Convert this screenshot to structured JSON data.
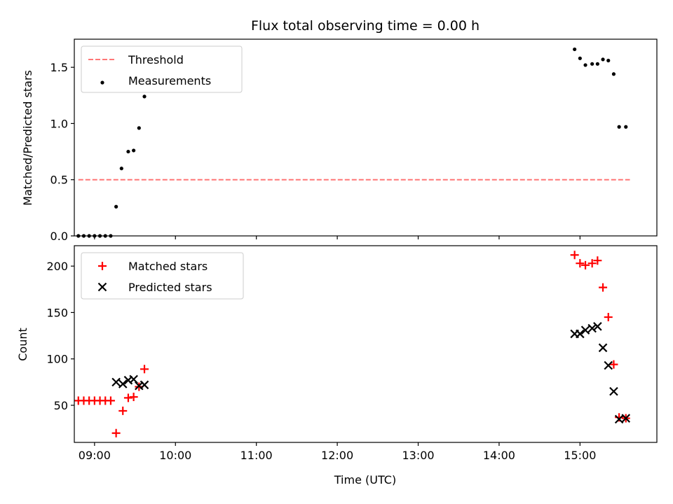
{
  "chart_data": [
    {
      "type": "scatter",
      "title": "Flux total observing time = 0.00 h",
      "xlabel": "",
      "ylabel": "Matched/Predicted stars",
      "xlim": [
        "08:45",
        "15:57"
      ],
      "ylim": [
        0,
        1.75
      ],
      "x_ticks": [
        "09:00",
        "10:00",
        "11:00",
        "12:00",
        "13:00",
        "14:00",
        "15:00"
      ],
      "x_tick_labels_shown": false,
      "y_ticks": [
        0.0,
        0.5,
        1.0,
        1.5
      ],
      "y_tick_labels": [
        "0.0",
        "0.5",
        "1.0",
        "1.5"
      ],
      "legend": "upper-left",
      "grid": false,
      "series": [
        {
          "name": "Threshold",
          "kind": "line",
          "style": "dashed",
          "color": "#ff7777",
          "x": [
            "08:48",
            "15:37"
          ],
          "y": [
            0.5,
            0.5
          ]
        },
        {
          "name": "Measurements",
          "kind": "scatter",
          "marker": "dot",
          "color": "#000000",
          "x": [
            "08:48",
            "08:52",
            "08:56",
            "09:00",
            "09:04",
            "09:08",
            "09:12",
            "09:16",
            "09:20",
            "09:25",
            "09:29",
            "09:33",
            "09:37",
            "14:56",
            "15:00",
            "15:04",
            "15:09",
            "15:13",
            "15:17",
            "15:21",
            "15:25",
            "15:29",
            "15:34"
          ],
          "y": [
            0.0,
            0.0,
            0.0,
            0.0,
            0.0,
            0.0,
            0.0,
            0.26,
            0.6,
            0.75,
            0.76,
            0.96,
            1.24,
            1.66,
            1.58,
            1.52,
            1.53,
            1.53,
            1.57,
            1.56,
            1.44,
            0.97,
            0.97
          ]
        }
      ]
    },
    {
      "type": "scatter",
      "title": "",
      "xlabel": "Time (UTC)",
      "ylabel": "Count",
      "xlim": [
        "08:45",
        "15:57"
      ],
      "ylim": [
        10,
        222
      ],
      "x_ticks": [
        "09:00",
        "10:00",
        "11:00",
        "12:00",
        "13:00",
        "14:00",
        "15:00"
      ],
      "x_tick_labels": [
        "09:00",
        "10:00",
        "11:00",
        "12:00",
        "13:00",
        "14:00",
        "15:00"
      ],
      "y_ticks": [
        50,
        100,
        150,
        200
      ],
      "y_tick_labels": [
        "50",
        "100",
        "150",
        "200"
      ],
      "legend": "upper-left",
      "grid": false,
      "series": [
        {
          "name": "Matched stars",
          "kind": "scatter",
          "marker": "plus",
          "color": "#ff0000",
          "x": [
            "08:48",
            "08:52",
            "08:56",
            "09:00",
            "09:04",
            "09:08",
            "09:12",
            "09:16",
            "09:21",
            "09:25",
            "09:29",
            "09:33",
            "09:37",
            "14:56",
            "15:00",
            "15:04",
            "15:09",
            "15:13",
            "15:17",
            "15:21",
            "15:25",
            "15:29",
            "15:34"
          ],
          "y": [
            55,
            55,
            55,
            55,
            55,
            55,
            55,
            20,
            44,
            58,
            59,
            70,
            89,
            212,
            203,
            201,
            203,
            206,
            177,
            145,
            94,
            37,
            36
          ]
        },
        {
          "name": "Predicted stars",
          "kind": "scatter",
          "marker": "x",
          "color": "#000000",
          "x": [
            "09:16",
            "09:21",
            "09:25",
            "09:29",
            "09:33",
            "09:37",
            "14:56",
            "15:00",
            "15:04",
            "15:09",
            "15:13",
            "15:17",
            "15:21",
            "15:25",
            "15:29",
            "15:34"
          ],
          "y": [
            75,
            73,
            77,
            78,
            71,
            72,
            127,
            127,
            131,
            133,
            135,
            112,
            93,
            65,
            35,
            36
          ]
        }
      ]
    }
  ]
}
